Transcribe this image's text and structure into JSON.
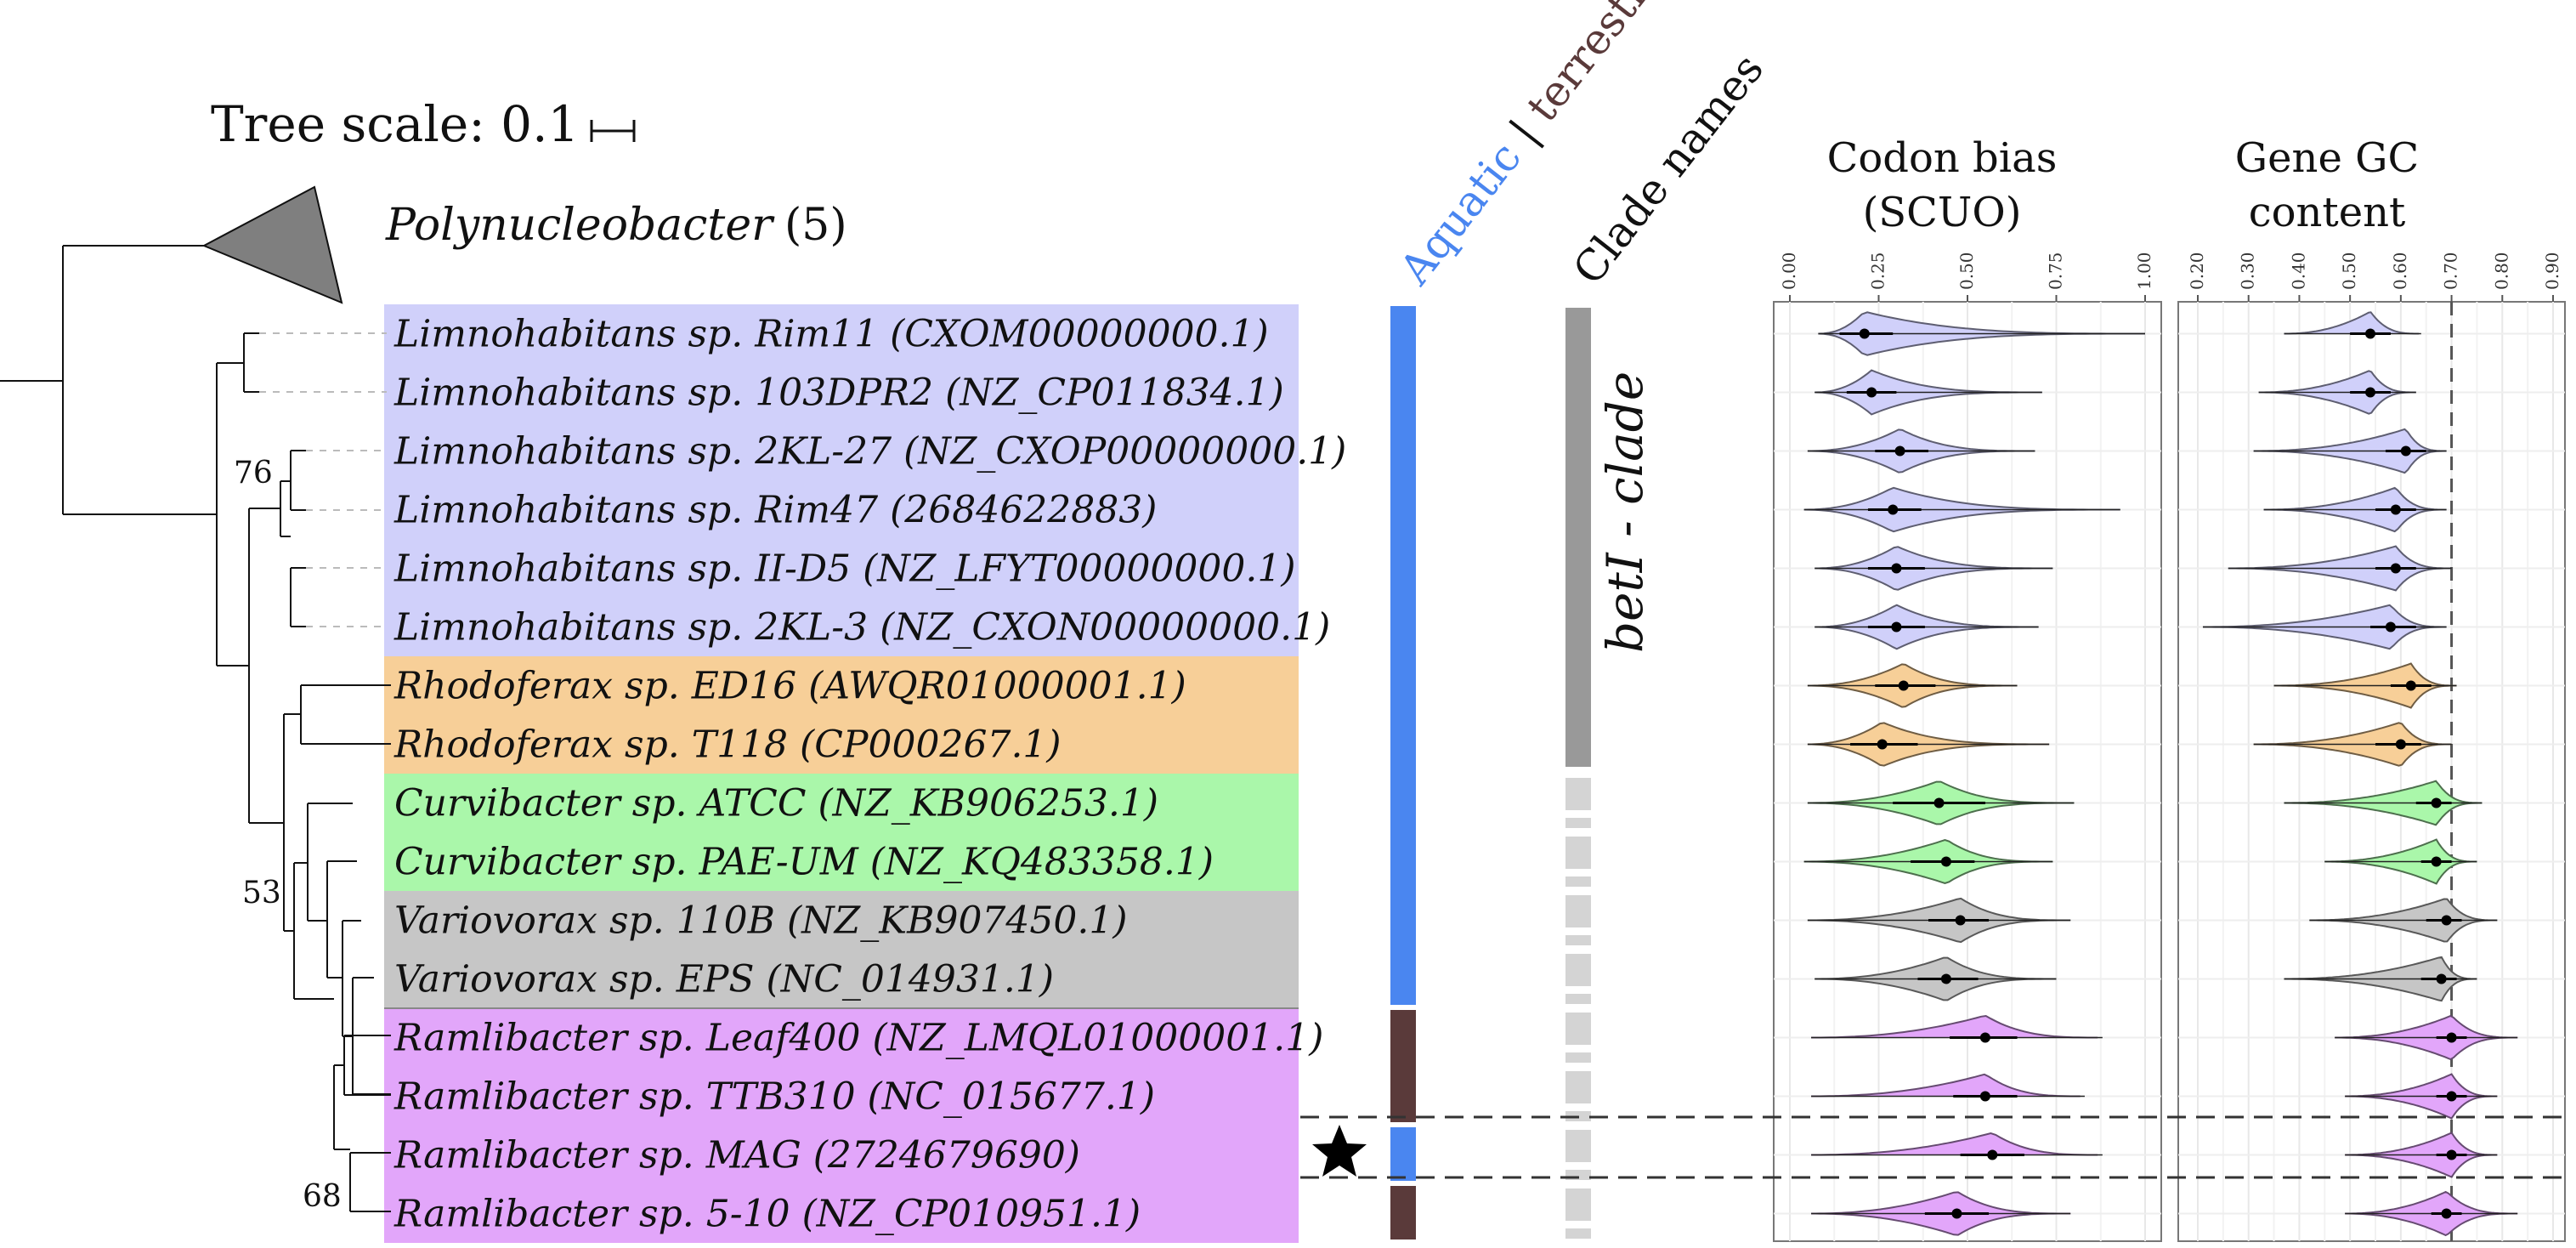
{
  "tree_scale": {
    "label": "Tree scale: 0.1"
  },
  "collapsed_clade": {
    "name": "Polynucleobacter",
    "count": "(5)"
  },
  "support_values": [
    "76",
    "53",
    "68"
  ],
  "headers": {
    "habitat_aquatic": "Aquatic",
    "habitat_sep": " | ",
    "habitat_terrestrial": "terrestrial",
    "clade_names": "Clade names",
    "codon_title_1": "Codon bias",
    "codon_title_2": "(SCUO)",
    "gc_title_1": "Gene GC",
    "gc_title_2": "content"
  },
  "clade_label": "betI - clade",
  "colors": {
    "Limnohabitans": "#d0d0fa",
    "Rhodoferax": "#f7cf98",
    "Curvibacter": "#aaf7aa",
    "Variovorax": "#c6c6c6",
    "Ramlibacter": "#e2a6fa",
    "aquatic": "#4a86f0",
    "terrestrial": "#5a3a3a",
    "clade_solid": "#999999",
    "clade_dash": "#d4d4d4"
  },
  "taxa": [
    {
      "label": "Limnohabitans sp. Rim11 (CXOM00000000.1)",
      "genus": "Limnohabitans",
      "habitat": "aquatic",
      "clade": "betI"
    },
    {
      "label": "Limnohabitans sp. 103DPR2 (NZ_CP011834.1)",
      "genus": "Limnohabitans",
      "habitat": "aquatic",
      "clade": "betI"
    },
    {
      "label": "Limnohabitans sp. 2KL-27 (NZ_CXOP00000000.1)",
      "genus": "Limnohabitans",
      "habitat": "aquatic",
      "clade": "betI"
    },
    {
      "label": "Limnohabitans sp. Rim47 (2684622883)",
      "genus": "Limnohabitans",
      "habitat": "aquatic",
      "clade": "betI"
    },
    {
      "label": "Limnohabitans sp. II-D5 (NZ_LFYT00000000.1)",
      "genus": "Limnohabitans",
      "habitat": "aquatic",
      "clade": "betI"
    },
    {
      "label": "Limnohabitans sp. 2KL-3 (NZ_CXON00000000.1)",
      "genus": "Limnohabitans",
      "habitat": "aquatic",
      "clade": "betI"
    },
    {
      "label": "Rhodoferax sp. ED16 (AWQR01000001.1)",
      "genus": "Rhodoferax",
      "habitat": "aquatic",
      "clade": "betI"
    },
    {
      "label": "Rhodoferax sp. T118 (CP000267.1)",
      "genus": "Rhodoferax",
      "habitat": "aquatic",
      "clade": "betI"
    },
    {
      "label": "Curvibacter sp. ATCC (NZ_KB906253.1)",
      "genus": "Curvibacter",
      "habitat": "aquatic",
      "clade": ""
    },
    {
      "label": "Curvibacter sp. PAE-UM (NZ_KQ483358.1)",
      "genus": "Curvibacter",
      "habitat": "aquatic",
      "clade": ""
    },
    {
      "label": "Variovorax sp. 110B (NZ_KB907450.1)",
      "genus": "Variovorax",
      "habitat": "aquatic",
      "clade": ""
    },
    {
      "label": "Variovorax sp. EPS (NC_014931.1)",
      "genus": "Variovorax",
      "habitat": "aquatic",
      "clade": ""
    },
    {
      "label": "Ramlibacter sp. Leaf400 (NZ_LMQL01000001.1)",
      "genus": "Ramlibacter",
      "habitat": "terrestrial",
      "clade": ""
    },
    {
      "label": "Ramlibacter sp. TTB310 (NC_015677.1)",
      "genus": "Ramlibacter",
      "habitat": "terrestrial",
      "clade": ""
    },
    {
      "label": "Ramlibacter sp. MAG (2724679690)",
      "genus": "Ramlibacter",
      "habitat": "aquatic",
      "clade": "",
      "highlight": true
    },
    {
      "label": "Ramlibacter sp. 5-10 (NZ_CP010951.1)",
      "genus": "Ramlibacter",
      "habitat": "terrestrial",
      "clade": ""
    }
  ],
  "chart_data": [
    {
      "type": "violin",
      "title": "Codon bias (SCUO)",
      "xlim": [
        0,
        1
      ],
      "ticks": [
        "0.00",
        "0.25",
        "0.50",
        "0.75",
        "1.00"
      ],
      "grid": true,
      "series": [
        {
          "median": 0.21,
          "q1": 0.14,
          "q3": 0.29,
          "min": 0.08,
          "max": 1.0
        },
        {
          "median": 0.23,
          "q1": 0.16,
          "q3": 0.3,
          "min": 0.07,
          "max": 0.71
        },
        {
          "median": 0.31,
          "q1": 0.24,
          "q3": 0.39,
          "min": 0.05,
          "max": 0.69
        },
        {
          "median": 0.29,
          "q1": 0.22,
          "q3": 0.37,
          "min": 0.04,
          "max": 0.93
        },
        {
          "median": 0.3,
          "q1": 0.22,
          "q3": 0.38,
          "min": 0.07,
          "max": 0.74
        },
        {
          "median": 0.3,
          "q1": 0.22,
          "q3": 0.38,
          "min": 0.07,
          "max": 0.7
        },
        {
          "median": 0.32,
          "q1": 0.24,
          "q3": 0.41,
          "min": 0.05,
          "max": 0.64
        },
        {
          "median": 0.26,
          "q1": 0.17,
          "q3": 0.36,
          "min": 0.05,
          "max": 0.73
        },
        {
          "median": 0.42,
          "q1": 0.29,
          "q3": 0.55,
          "min": 0.05,
          "max": 0.8
        },
        {
          "median": 0.44,
          "q1": 0.34,
          "q3": 0.52,
          "min": 0.04,
          "max": 0.74
        },
        {
          "median": 0.48,
          "q1": 0.39,
          "q3": 0.56,
          "min": 0.05,
          "max": 0.79
        },
        {
          "median": 0.44,
          "q1": 0.36,
          "q3": 0.53,
          "min": 0.07,
          "max": 0.75
        },
        {
          "median": 0.55,
          "q1": 0.45,
          "q3": 0.64,
          "min": 0.06,
          "max": 0.88
        },
        {
          "median": 0.55,
          "q1": 0.46,
          "q3": 0.64,
          "min": 0.06,
          "max": 0.83
        },
        {
          "median": 0.57,
          "q1": 0.48,
          "q3": 0.66,
          "min": 0.06,
          "max": 0.88
        },
        {
          "median": 0.47,
          "q1": 0.38,
          "q3": 0.56,
          "min": 0.06,
          "max": 0.79
        }
      ]
    },
    {
      "type": "violin",
      "title": "Gene GC content",
      "xlim": [
        0.2,
        0.9
      ],
      "ticks": [
        "0.20",
        "0.30",
        "0.40",
        "0.50",
        "0.60",
        "0.70",
        "0.80",
        "0.90"
      ],
      "grid": true,
      "reference_line": 0.7,
      "series": [
        {
          "median": 0.54,
          "q1": 0.5,
          "q3": 0.58,
          "min": 0.37,
          "max": 0.64
        },
        {
          "median": 0.54,
          "q1": 0.5,
          "q3": 0.58,
          "min": 0.32,
          "max": 0.63
        },
        {
          "median": 0.61,
          "q1": 0.57,
          "q3": 0.65,
          "min": 0.31,
          "max": 0.69
        },
        {
          "median": 0.59,
          "q1": 0.55,
          "q3": 0.63,
          "min": 0.33,
          "max": 0.69
        },
        {
          "median": 0.59,
          "q1": 0.55,
          "q3": 0.63,
          "min": 0.26,
          "max": 0.7
        },
        {
          "median": 0.58,
          "q1": 0.54,
          "q3": 0.63,
          "min": 0.21,
          "max": 0.69
        },
        {
          "median": 0.62,
          "q1": 0.58,
          "q3": 0.66,
          "min": 0.35,
          "max": 0.71
        },
        {
          "median": 0.6,
          "q1": 0.55,
          "q3": 0.64,
          "min": 0.31,
          "max": 0.7
        },
        {
          "median": 0.67,
          "q1": 0.63,
          "q3": 0.7,
          "min": 0.37,
          "max": 0.76
        },
        {
          "median": 0.67,
          "q1": 0.64,
          "q3": 0.7,
          "min": 0.45,
          "max": 0.75
        },
        {
          "median": 0.69,
          "q1": 0.65,
          "q3": 0.72,
          "min": 0.42,
          "max": 0.79
        },
        {
          "median": 0.68,
          "q1": 0.64,
          "q3": 0.71,
          "min": 0.37,
          "max": 0.75
        },
        {
          "median": 0.7,
          "q1": 0.67,
          "q3": 0.73,
          "min": 0.47,
          "max": 0.83
        },
        {
          "median": 0.7,
          "q1": 0.67,
          "q3": 0.73,
          "min": 0.49,
          "max": 0.79
        },
        {
          "median": 0.7,
          "q1": 0.67,
          "q3": 0.73,
          "min": 0.49,
          "max": 0.79
        },
        {
          "median": 0.69,
          "q1": 0.66,
          "q3": 0.72,
          "min": 0.49,
          "max": 0.83
        }
      ]
    }
  ]
}
